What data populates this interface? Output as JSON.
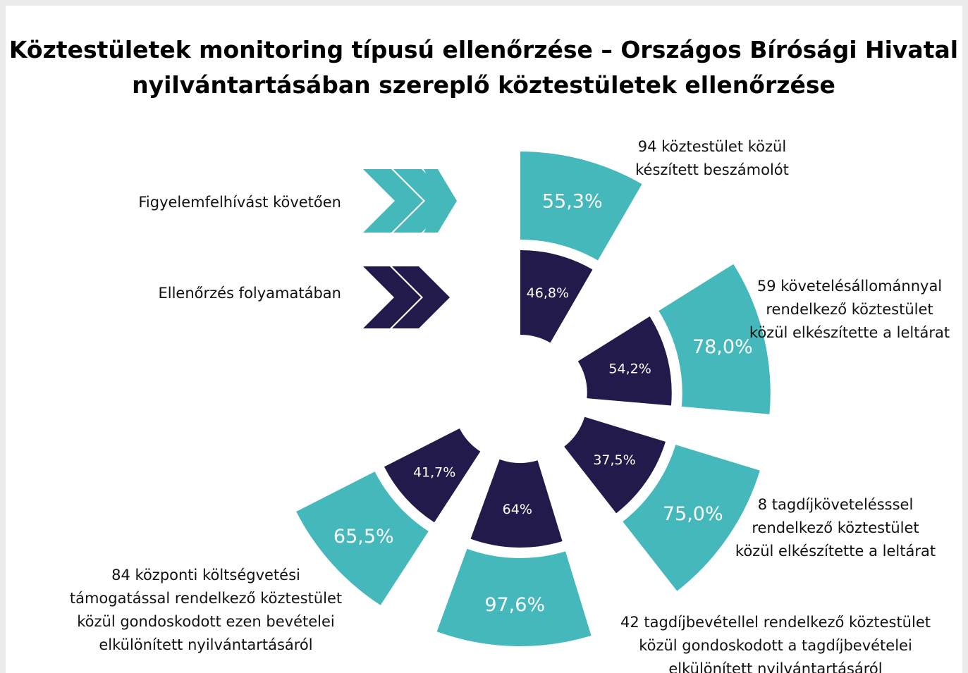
{
  "title": [
    "Köztestületek monitoring típusú ellenőrzése – Országos Bírósági Hivatal",
    "nyilvántartásában szereplő köztestületek ellenőrzése"
  ],
  "legend": {
    "after": "Figyelemfelhívást követően",
    "during": "Ellenőrzés folyamatában"
  },
  "items": [
    {
      "description": [
        "94 köztestület közül",
        "készített beszámolót"
      ],
      "after": "55,3%",
      "during": "46,8%"
    },
    {
      "description": [
        "59 követelésállománnyal",
        "rendelkező köztestület",
        "közül elkészítette a leltárat"
      ],
      "after": "78,0%",
      "during": "54,2%"
    },
    {
      "description": [
        "8 tagdíjkövetelésssel",
        "rendelkező köztestület",
        "közül elkészítette a leltárat"
      ],
      "after": "75,0%",
      "during": "37,5%"
    },
    {
      "description": [
        "42 tagdíjbevétellel rendelkező köztestület",
        "közül gondoskodott a tagdíjbevételei",
        "elkülönített nyilvántartásáról"
      ],
      "after": "97,6%",
      "during": "64%"
    },
    {
      "description": [
        "84 központi költségvetési",
        "támogatással rendelkező köztestület",
        "közül gondoskodott ezen bevételei",
        "elkülönített nyilvántartásáról"
      ],
      "after": "65,5%",
      "during": "41,7%"
    }
  ]
}
